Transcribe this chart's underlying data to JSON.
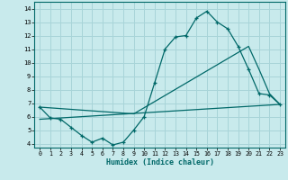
{
  "bg_color": "#c8eaec",
  "grid_color": "#a8d4d8",
  "line_color": "#006868",
  "line1_x": [
    0,
    1,
    2,
    3,
    4,
    5,
    6,
    7,
    8,
    9,
    10,
    11,
    12,
    13,
    14,
    15,
    16,
    17,
    18,
    19,
    20,
    21,
    22,
    23
  ],
  "line1_y": [
    6.7,
    5.9,
    5.8,
    5.2,
    4.6,
    4.1,
    4.4,
    3.9,
    4.1,
    5.0,
    6.0,
    8.5,
    11.0,
    11.9,
    12.0,
    13.3,
    13.8,
    13.0,
    12.5,
    11.2,
    9.5,
    7.7,
    7.6,
    6.9
  ],
  "line2_x": [
    0,
    23
  ],
  "line2_y": [
    5.8,
    6.9
  ],
  "line3_x": [
    0,
    9,
    20,
    21,
    22,
    23
  ],
  "line3_y": [
    6.7,
    6.2,
    11.2,
    9.5,
    7.7,
    6.9
  ],
  "xlim": [
    -0.5,
    23.5
  ],
  "ylim": [
    3.7,
    14.5
  ],
  "yticks": [
    4,
    5,
    6,
    7,
    8,
    9,
    10,
    11,
    12,
    13,
    14
  ],
  "xticks": [
    0,
    1,
    2,
    3,
    4,
    5,
    6,
    7,
    8,
    9,
    10,
    11,
    12,
    13,
    14,
    15,
    16,
    17,
    18,
    19,
    20,
    21,
    22,
    23
  ],
  "xlabel": "Humidex (Indice chaleur)"
}
